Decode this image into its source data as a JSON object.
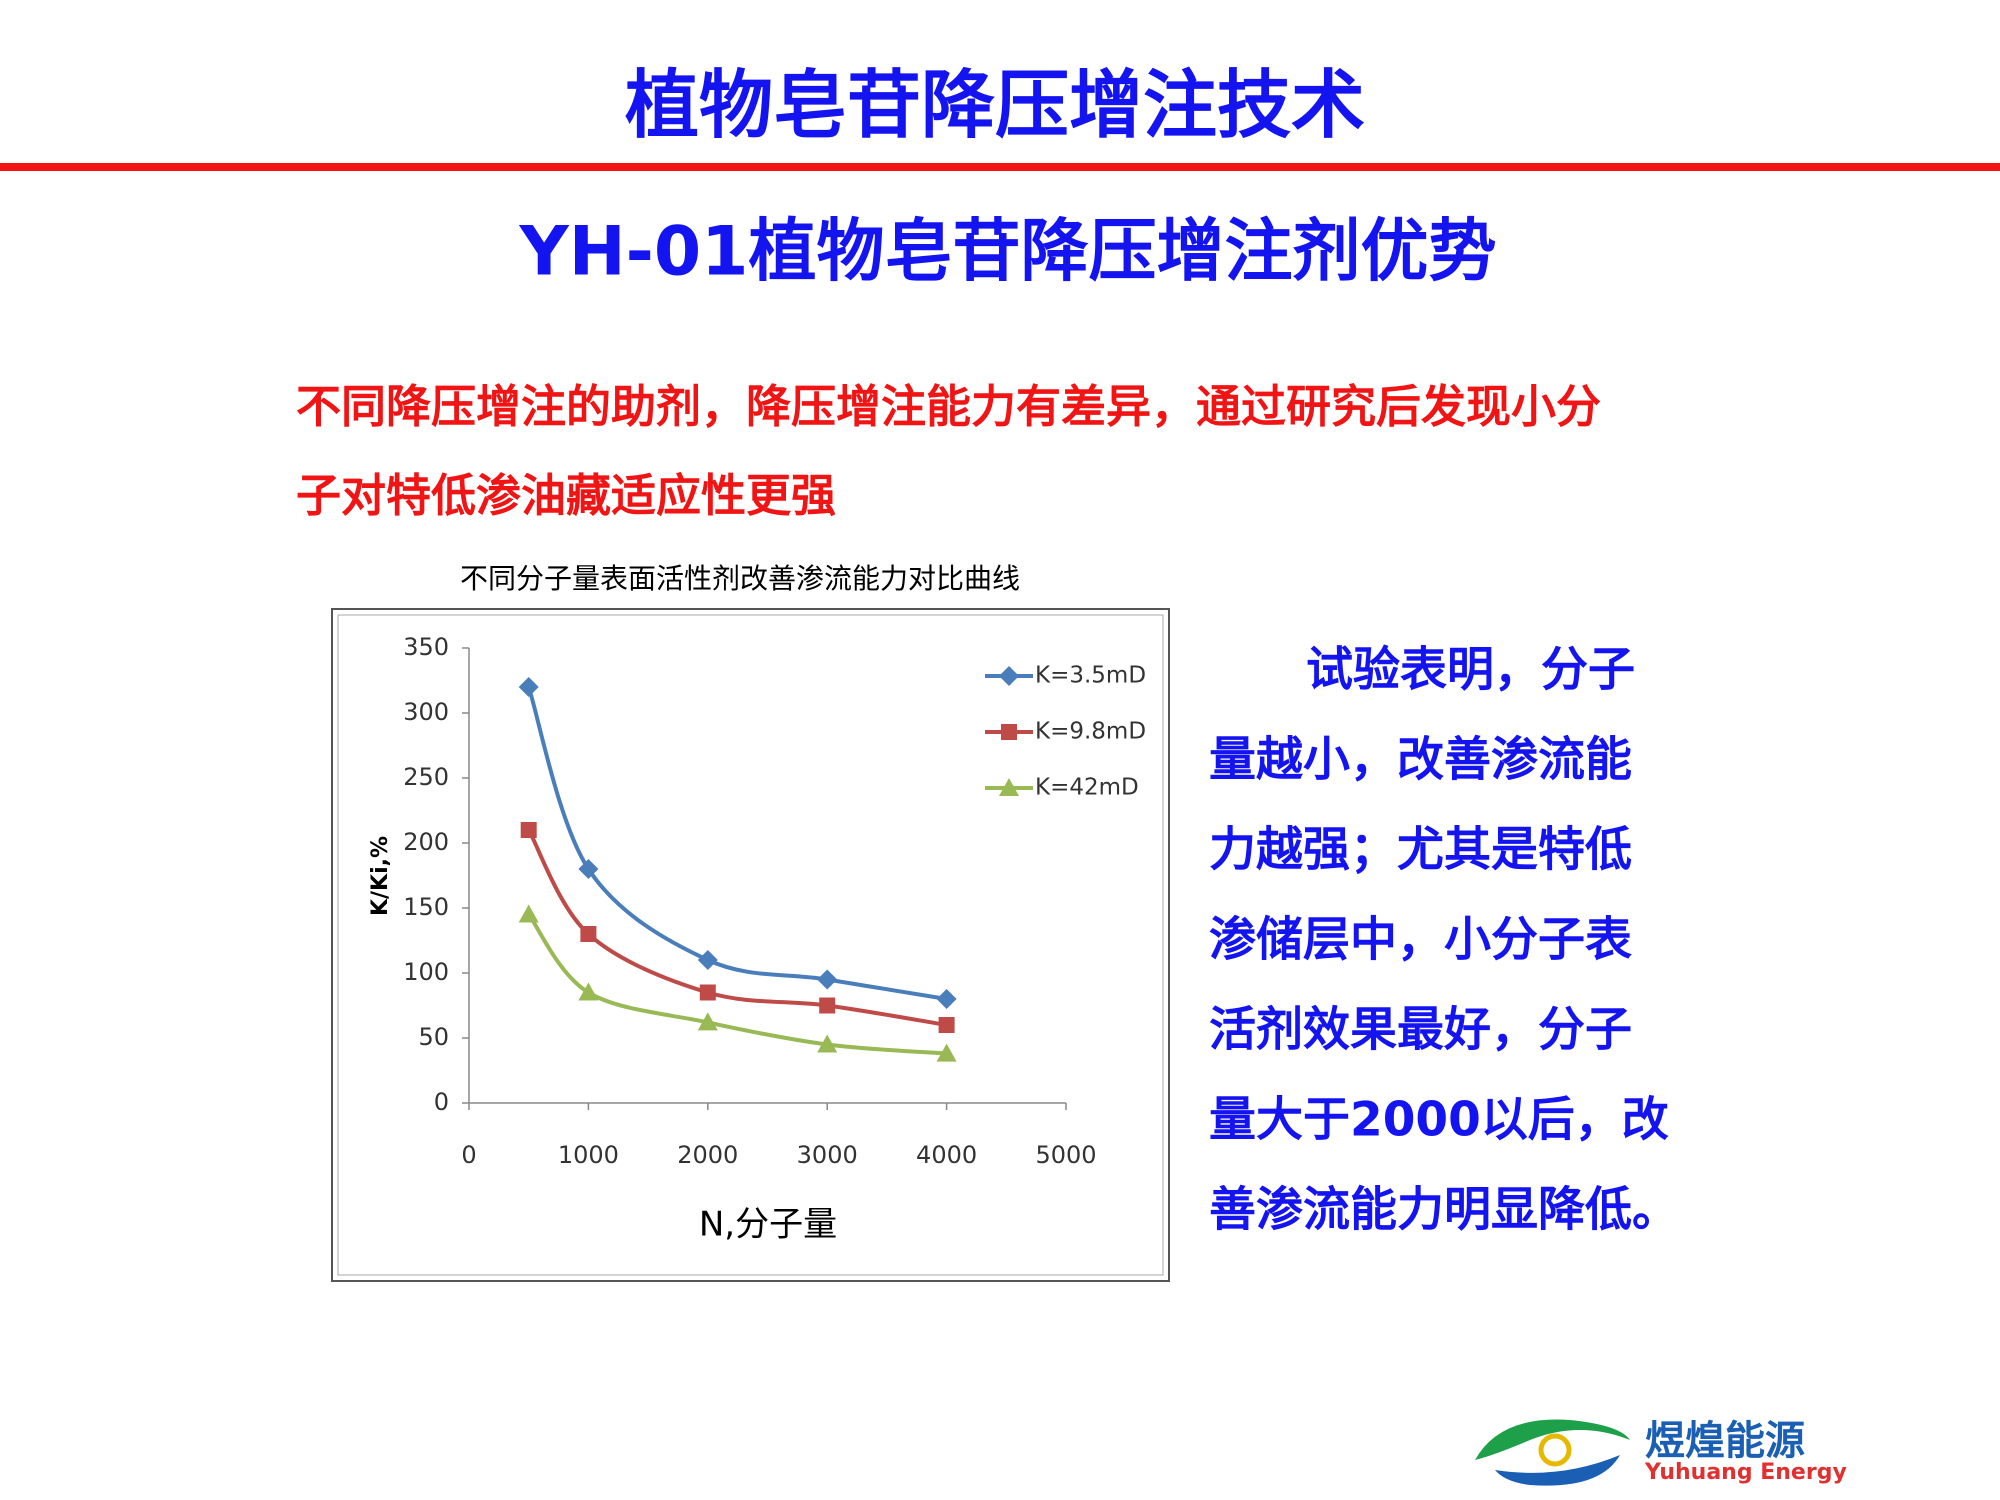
{
  "header": {
    "title": "植物皂苷降压增注技术",
    "subtitle": "YH-01植物皂苷降压增注剂优势"
  },
  "intro": {
    "lines": [
      "不同降压增注的助剂，降压增注能力有差异，通过研究后发现小分",
      "子对特低渗油藏适应性更强"
    ]
  },
  "chart_data": {
    "type": "line",
    "title": "不同分子量表面活性剂改善渗流能力对比曲线",
    "x_label": "N,分子量",
    "y_label": "K/Ki,%",
    "x": [
      500,
      1000,
      2000,
      3000,
      4000
    ],
    "series": [
      {
        "name": "K=3.5mD",
        "color": "#4a7ebb",
        "marker": "diamond",
        "values": [
          320,
          180,
          110,
          95,
          80
        ]
      },
      {
        "name": "K=9.8mD",
        "color": "#be4b48",
        "marker": "square",
        "values": [
          210,
          130,
          85,
          75,
          60
        ]
      },
      {
        "name": "K=42mD",
        "color": "#98b954",
        "marker": "triangle",
        "values": [
          145,
          85,
          62,
          45,
          38
        ]
      }
    ],
    "xlim": [
      0,
      5000
    ],
    "xticks": [
      0,
      1000,
      2000,
      3000,
      4000,
      5000
    ],
    "ylim": [
      0,
      350
    ],
    "yticks": [
      0,
      50,
      100,
      150,
      200,
      250,
      300,
      350
    ],
    "grid": false,
    "smooth": true,
    "legend": "top-right"
  },
  "conclusion": {
    "lines": [
      "试验表明，分子",
      "量越小，改善渗流能",
      "力越强；尤其是特低",
      "渗储层中，小分子表",
      "活剂效果最好，分子",
      "量大于2000以后，改",
      "善渗流能力明显降低。"
    ]
  },
  "logo": {
    "name": "煜煌能源",
    "english": "Yuhuang Energy"
  }
}
